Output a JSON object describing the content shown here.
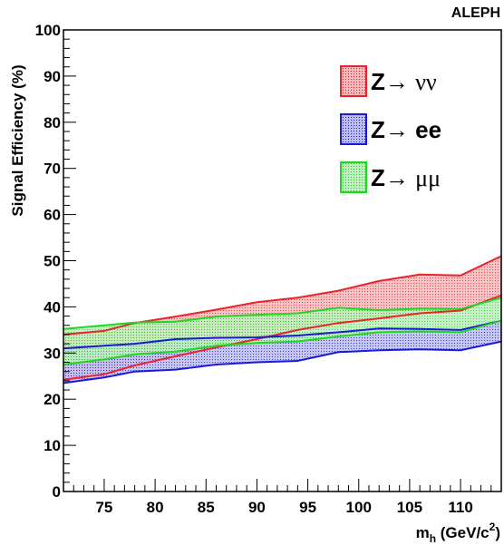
{
  "experiment_label": "ALEPH",
  "chart_data": {
    "type": "area",
    "xlabel_main": "m",
    "xlabel_sub": "h",
    "xlabel_units": " (GeV/c",
    "xlabel_sup": "2",
    "xlabel_close": ")",
    "ylabel": "Signal Efficiency (%)",
    "xlim": [
      71,
      114
    ],
    "ylim": [
      0,
      100
    ],
    "x_ticks": [
      75,
      80,
      85,
      90,
      95,
      100,
      105,
      110
    ],
    "y_ticks": [
      0,
      10,
      20,
      30,
      40,
      50,
      60,
      70,
      80,
      90,
      100
    ],
    "x": [
      71,
      75,
      78,
      82,
      86,
      90,
      94,
      98,
      102,
      106,
      110,
      114
    ],
    "series": [
      {
        "legend_prefix": "Z",
        "legend_arrow": "→",
        "legend_particles": "νν",
        "particles_bold": false,
        "color": "#e8242b",
        "fill": "#f7b3b6",
        "upper": [
          34.0,
          34.8,
          36.5,
          37.9,
          39.4,
          41.0,
          42.0,
          43.5,
          45.6,
          47.0,
          46.8,
          51.0
        ],
        "lower": [
          24.2,
          25.4,
          27.3,
          29.3,
          31.2,
          33.0,
          35.0,
          36.5,
          37.5,
          38.6,
          39.2,
          42.5
        ]
      },
      {
        "legend_prefix": "Z",
        "legend_arrow": "→",
        "legend_particles": "ee",
        "particles_bold": true,
        "color": "#1a1ad6",
        "fill": "#b4b4ef",
        "upper": [
          31.0,
          31.6,
          32.0,
          33.0,
          33.3,
          33.4,
          33.8,
          34.5,
          35.3,
          35.2,
          35.0,
          37.0
        ],
        "lower": [
          23.5,
          24.7,
          26.0,
          26.4,
          27.5,
          28.0,
          28.3,
          30.2,
          30.6,
          30.8,
          30.6,
          32.5
        ]
      },
      {
        "legend_prefix": "Z",
        "legend_arrow": "→",
        "legend_particles": "μμ",
        "particles_bold": false,
        "color": "#22d622",
        "fill": "#b2efb2",
        "upper": [
          35.2,
          36.0,
          36.6,
          36.8,
          37.9,
          38.3,
          38.6,
          39.8,
          39.3,
          39.6,
          39.5,
          42.0
        ],
        "lower": [
          27.5,
          28.6,
          29.7,
          30.3,
          31.6,
          32.2,
          32.5,
          33.6,
          34.5,
          34.7,
          34.5,
          37.0
        ]
      }
    ]
  }
}
